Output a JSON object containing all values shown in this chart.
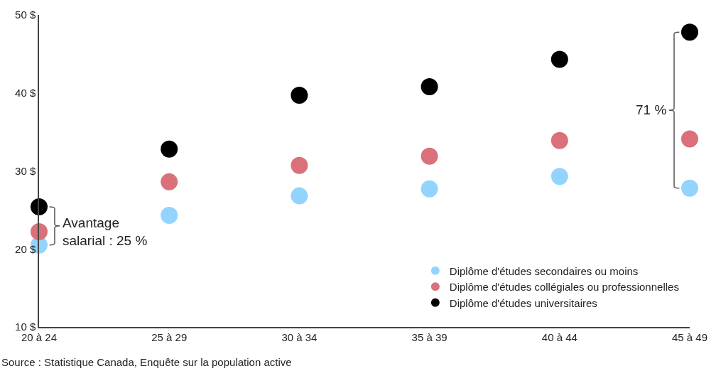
{
  "chart_data": {
    "type": "scatter",
    "categories": [
      "20 à 24",
      "25 à 29",
      "30 à 34",
      "35 à 39",
      "40 à 44",
      "45 à 49"
    ],
    "series": [
      {
        "name": "Diplôme d'études secondaires ou moins",
        "color": "#92d4fe",
        "values": [
          20.5,
          24.3,
          26.8,
          27.7,
          29.3,
          27.8
        ]
      },
      {
        "name": "Diplôme d'études collégiales ou professionnelles",
        "color": "#d9707a",
        "values": [
          22.2,
          28.6,
          30.7,
          31.9,
          33.9,
          34.1
        ]
      },
      {
        "name": "Diplôme d'études universitaires",
        "color": "#000000",
        "values": [
          25.4,
          32.8,
          39.7,
          40.8,
          44.3,
          47.8
        ]
      }
    ],
    "ylim": [
      10,
      50
    ],
    "yticks": [
      {
        "value": 10,
        "label": "10 $"
      },
      {
        "value": 20,
        "label": "20 $"
      },
      {
        "value": 30,
        "label": "30 $"
      },
      {
        "value": 40,
        "label": "40 $"
      },
      {
        "value": 50,
        "label": "50 $"
      }
    ],
    "marker": "circle",
    "grid": false,
    "legend": "bottom right",
    "annotations": [
      {
        "text": "Avantage\nsalarial : 25 %",
        "x": "20 à 24",
        "y": 22.2
      },
      "71 %",
      "Source : Statistique Canada, Enquête sur la population active"
    ]
  }
}
